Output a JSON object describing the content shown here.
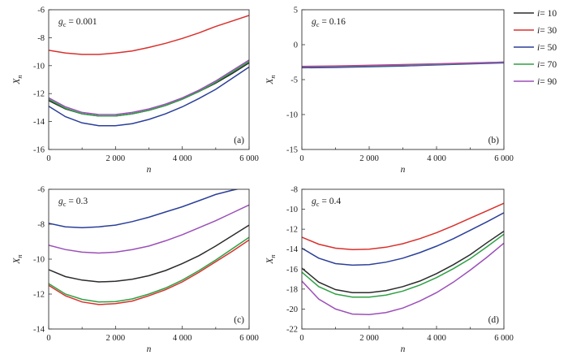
{
  "legend": {
    "entries": [
      {
        "label": "i = 10",
        "color": "#2b2b2b"
      },
      {
        "label": "i = 30",
        "color": "#d9302c"
      },
      {
        "label": "i = 50",
        "color": "#2a3f99"
      },
      {
        "label": "i = 70",
        "color": "#2ea043"
      },
      {
        "label": "i = 90",
        "color": "#9b4fb8"
      }
    ]
  },
  "chart_data": [
    {
      "type": "line",
      "tag": "(a)",
      "annotation": "gc = 0.001",
      "xlabel": "n",
      "ylabel": "Xn",
      "xlim": [
        0,
        6000
      ],
      "ylim": [
        -16,
        -6
      ],
      "xticks": [
        0,
        2000,
        4000,
        6000
      ],
      "xtick_labels": [
        "0",
        "2 000",
        "4 000",
        "6 000"
      ],
      "yticks": [
        -16,
        -14,
        -12,
        -10,
        -8,
        -6
      ],
      "series": [
        {
          "name": "i = 10",
          "color": "#2b2b2b",
          "x": [
            0,
            500,
            1000,
            1500,
            2000,
            2500,
            3000,
            3500,
            4000,
            4500,
            5000,
            5500,
            6000
          ],
          "y": [
            -12.5,
            -13.1,
            -13.45,
            -13.6,
            -13.6,
            -13.45,
            -13.2,
            -12.85,
            -12.4,
            -11.85,
            -11.25,
            -10.55,
            -9.8
          ]
        },
        {
          "name": "i = 30",
          "color": "#d9302c",
          "x": [
            0,
            500,
            1000,
            1500,
            2000,
            2500,
            3000,
            3500,
            4000,
            4500,
            5000,
            5500,
            6000
          ],
          "y": [
            -8.9,
            -9.1,
            -9.2,
            -9.2,
            -9.1,
            -8.95,
            -8.7,
            -8.4,
            -8.05,
            -7.65,
            -7.2,
            -6.8,
            -6.4
          ]
        },
        {
          "name": "i = 50",
          "color": "#2a3f99",
          "x": [
            0,
            500,
            1000,
            1500,
            2000,
            2500,
            3000,
            3500,
            4000,
            4500,
            5000,
            5500,
            6000
          ],
          "y": [
            -12.9,
            -13.65,
            -14.1,
            -14.3,
            -14.3,
            -14.15,
            -13.85,
            -13.45,
            -12.95,
            -12.35,
            -11.7,
            -10.9,
            -10.1
          ]
        },
        {
          "name": "i = 70",
          "color": "#2ea043",
          "x": [
            0,
            500,
            1000,
            1500,
            2000,
            2500,
            3000,
            3500,
            4000,
            4500,
            5000,
            5500,
            6000
          ],
          "y": [
            -12.4,
            -13.05,
            -13.45,
            -13.6,
            -13.6,
            -13.45,
            -13.2,
            -12.85,
            -12.4,
            -11.85,
            -11.2,
            -10.45,
            -9.7
          ]
        },
        {
          "name": "i = 90",
          "color": "#9b4fb8",
          "x": [
            0,
            500,
            1000,
            1500,
            2000,
            2500,
            3000,
            3500,
            4000,
            4500,
            5000,
            5500,
            6000
          ],
          "y": [
            -12.3,
            -12.95,
            -13.35,
            -13.5,
            -13.5,
            -13.35,
            -13.1,
            -12.75,
            -12.3,
            -11.75,
            -11.1,
            -10.35,
            -9.6
          ]
        }
      ]
    },
    {
      "type": "line",
      "tag": "(b)",
      "annotation": "gc = 0.16",
      "xlabel": "n",
      "ylabel": "Xn",
      "xlim": [
        0,
        6000
      ],
      "ylim": [
        -15,
        5
      ],
      "xticks": [
        0,
        2000,
        4000,
        6000
      ],
      "xtick_labels": [
        "0",
        "2 000",
        "4 000",
        "6 000"
      ],
      "yticks": [
        -15,
        -10,
        -5,
        0,
        5
      ],
      "series": [
        {
          "name": "i = 10",
          "color": "#2b2b2b",
          "x": [
            0,
            1000,
            2000,
            3000,
            4000,
            5000,
            6000
          ],
          "y": [
            -3.2,
            -3.15,
            -3.05,
            -2.95,
            -2.85,
            -2.7,
            -2.55
          ]
        },
        {
          "name": "i = 30",
          "color": "#d9302c",
          "x": [
            0,
            1000,
            2000,
            3000,
            4000,
            5000,
            6000
          ],
          "y": [
            -3.1,
            -3.05,
            -2.95,
            -2.85,
            -2.75,
            -2.62,
            -2.5
          ]
        },
        {
          "name": "i = 50",
          "color": "#2a3f99",
          "x": [
            0,
            1000,
            2000,
            3000,
            4000,
            5000,
            6000
          ],
          "y": [
            -3.3,
            -3.25,
            -3.15,
            -3.05,
            -2.9,
            -2.75,
            -2.6
          ]
        },
        {
          "name": "i = 70",
          "color": "#2ea043",
          "x": [
            0,
            1000,
            2000,
            3000,
            4000,
            5000,
            6000
          ],
          "y": [
            -3.2,
            -3.15,
            -3.05,
            -2.95,
            -2.82,
            -2.68,
            -2.52
          ]
        },
        {
          "name": "i = 90",
          "color": "#9b4fb8",
          "x": [
            0,
            1000,
            2000,
            3000,
            4000,
            5000,
            6000
          ],
          "y": [
            -3.15,
            -3.1,
            -3.0,
            -2.9,
            -2.78,
            -2.65,
            -2.5
          ]
        }
      ]
    },
    {
      "type": "line",
      "tag": "(c)",
      "annotation": "gc = 0.3",
      "xlabel": "n",
      "ylabel": "Xn",
      "xlim": [
        0,
        6000
      ],
      "ylim": [
        -14,
        -6
      ],
      "xticks": [
        0,
        2000,
        4000,
        6000
      ],
      "xtick_labels": [
        "0",
        "2 000",
        "4 000",
        "6 000"
      ],
      "yticks": [
        -14,
        -12,
        -10,
        -8,
        -6
      ],
      "series": [
        {
          "name": "i = 10",
          "color": "#2b2b2b",
          "x": [
            0,
            500,
            1000,
            1500,
            2000,
            2500,
            3000,
            3500,
            4000,
            4500,
            5000,
            5500,
            6000
          ],
          "y": [
            -10.6,
            -11.0,
            -11.2,
            -11.3,
            -11.27,
            -11.15,
            -10.95,
            -10.65,
            -10.25,
            -9.8,
            -9.25,
            -8.65,
            -8.05
          ]
        },
        {
          "name": "i = 30",
          "color": "#d9302c",
          "x": [
            0,
            500,
            1000,
            1500,
            2000,
            2500,
            3000,
            3500,
            4000,
            4500,
            5000,
            5500,
            6000
          ],
          "y": [
            -11.5,
            -12.1,
            -12.45,
            -12.6,
            -12.55,
            -12.4,
            -12.1,
            -11.75,
            -11.3,
            -10.75,
            -10.15,
            -9.55,
            -8.9
          ]
        },
        {
          "name": "i = 50",
          "color": "#2a3f99",
          "x": [
            0,
            500,
            1000,
            1500,
            2000,
            2500,
            3000,
            3500,
            4000,
            4500,
            5000,
            5500,
            6000
          ],
          "y": [
            -7.95,
            -8.15,
            -8.2,
            -8.15,
            -8.05,
            -7.85,
            -7.6,
            -7.3,
            -7.0,
            -6.65,
            -6.3,
            -6.05,
            -5.85
          ]
        },
        {
          "name": "i = 70",
          "color": "#2ea043",
          "x": [
            0,
            500,
            1000,
            1500,
            2000,
            2500,
            3000,
            3500,
            4000,
            4500,
            5000,
            5500,
            6000
          ],
          "y": [
            -11.4,
            -12.0,
            -12.3,
            -12.45,
            -12.43,
            -12.28,
            -12.0,
            -11.65,
            -11.2,
            -10.65,
            -10.05,
            -9.4,
            -8.75
          ]
        },
        {
          "name": "i = 90",
          "color": "#9b4fb8",
          "x": [
            0,
            500,
            1000,
            1500,
            2000,
            2500,
            3000,
            3500,
            4000,
            4500,
            5000,
            5500,
            6000
          ],
          "y": [
            -9.2,
            -9.45,
            -9.6,
            -9.65,
            -9.6,
            -9.45,
            -9.25,
            -8.95,
            -8.6,
            -8.2,
            -7.8,
            -7.35,
            -6.9
          ]
        }
      ]
    },
    {
      "type": "line",
      "tag": "(d)",
      "annotation": "gc = 0.4",
      "xlabel": "n",
      "ylabel": "Xn",
      "xlim": [
        0,
        6000
      ],
      "ylim": [
        -22,
        -8
      ],
      "xticks": [
        0,
        2000,
        4000,
        6000
      ],
      "xtick_labels": [
        "0",
        "2 000",
        "4 000",
        "6 000"
      ],
      "yticks": [
        -22,
        -20,
        -18,
        -16,
        -14,
        -12,
        -10,
        -8
      ],
      "series": [
        {
          "name": "i = 10",
          "color": "#2b2b2b",
          "x": [
            0,
            500,
            1000,
            1500,
            2000,
            2500,
            3000,
            3500,
            4000,
            4500,
            5000,
            5500,
            6000
          ],
          "y": [
            -15.9,
            -17.3,
            -18.05,
            -18.35,
            -18.35,
            -18.15,
            -17.75,
            -17.2,
            -16.45,
            -15.55,
            -14.55,
            -13.35,
            -12.2
          ]
        },
        {
          "name": "i = 30",
          "color": "#d9302c",
          "x": [
            0,
            500,
            1000,
            1500,
            2000,
            2500,
            3000,
            3500,
            4000,
            4500,
            5000,
            5500,
            6000
          ],
          "y": [
            -12.8,
            -13.5,
            -13.9,
            -14.05,
            -14.0,
            -13.8,
            -13.45,
            -12.95,
            -12.35,
            -11.65,
            -10.9,
            -10.15,
            -9.4
          ]
        },
        {
          "name": "i = 50",
          "color": "#2a3f99",
          "x": [
            0,
            500,
            1000,
            1500,
            2000,
            2500,
            3000,
            3500,
            4000,
            4500,
            5000,
            5500,
            6000
          ],
          "y": [
            -13.9,
            -14.9,
            -15.45,
            -15.6,
            -15.55,
            -15.3,
            -14.9,
            -14.35,
            -13.7,
            -12.95,
            -12.1,
            -11.25,
            -10.35
          ]
        },
        {
          "name": "i = 70",
          "color": "#2ea043",
          "x": [
            0,
            500,
            1000,
            1500,
            2000,
            2500,
            3000,
            3500,
            4000,
            4500,
            5000,
            5500,
            6000
          ],
          "y": [
            -16.3,
            -17.75,
            -18.5,
            -18.8,
            -18.8,
            -18.6,
            -18.2,
            -17.6,
            -16.85,
            -15.95,
            -14.95,
            -13.75,
            -12.5
          ]
        },
        {
          "name": "i = 90",
          "color": "#9b4fb8",
          "x": [
            0,
            500,
            1000,
            1500,
            2000,
            2500,
            3000,
            3500,
            4000,
            4500,
            5000,
            5500,
            6000
          ],
          "y": [
            -17.2,
            -19.0,
            -20.0,
            -20.5,
            -20.55,
            -20.35,
            -19.9,
            -19.2,
            -18.35,
            -17.3,
            -16.1,
            -14.8,
            -13.4
          ]
        }
      ]
    }
  ]
}
